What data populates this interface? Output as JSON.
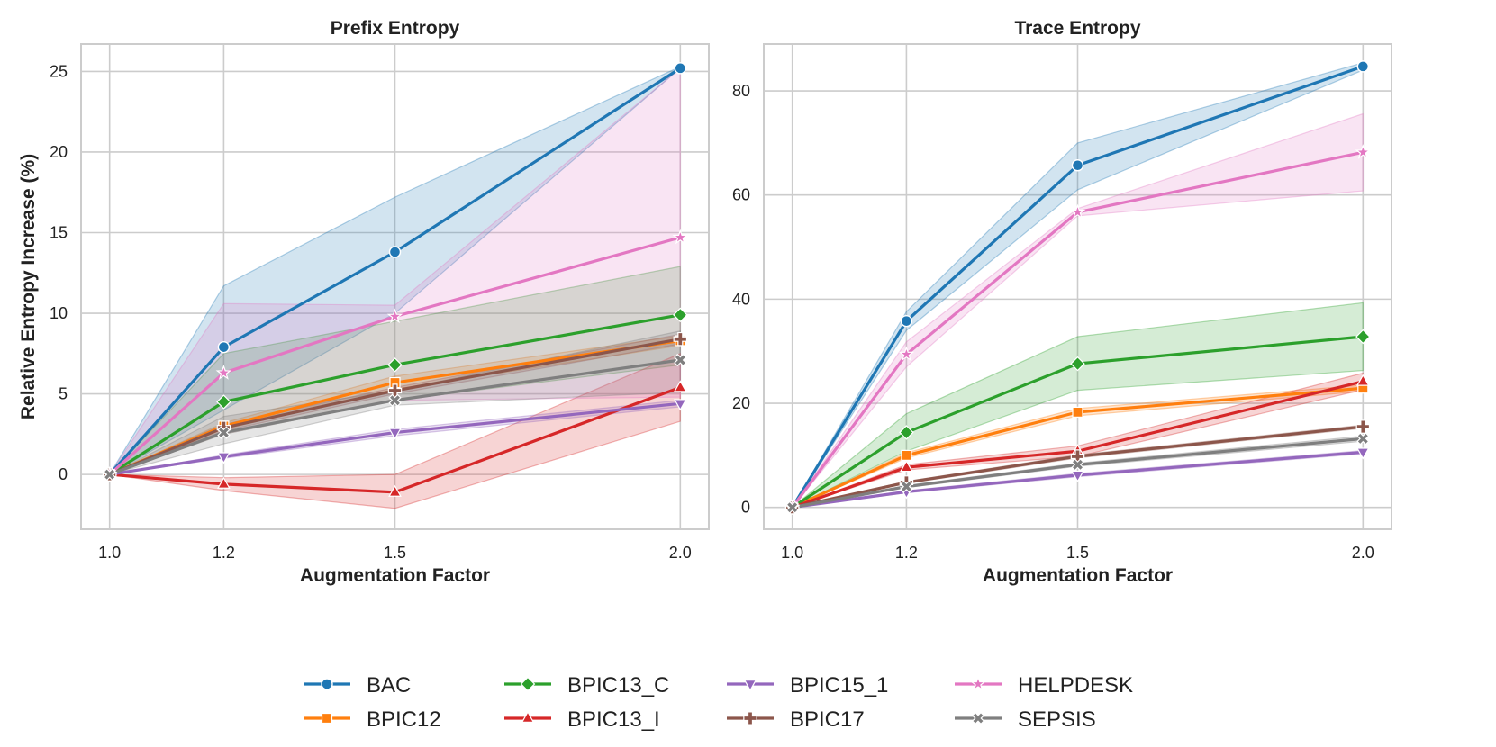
{
  "chart_data": [
    {
      "type": "line",
      "title": "Prefix Entropy",
      "xlabel": "Augmentation Factor",
      "ylabel": "Relative Entropy Increase (%)",
      "x": [
        1.0,
        1.2,
        1.5,
        2.0
      ],
      "xticks": [
        "1.0",
        "1.2",
        "1.5",
        "2.0"
      ],
      "xlim": [
        0.95,
        2.05
      ],
      "ylim": [
        -3.4,
        26.7
      ],
      "yticks": [
        0,
        5,
        10,
        15,
        20,
        25
      ],
      "grid": true,
      "series": [
        {
          "name": "BAC",
          "values": [
            0,
            7.9,
            13.8,
            25.2
          ],
          "lower": [
            0,
            4.0,
            10.0,
            25.2
          ],
          "upper": [
            0,
            11.7,
            17.2,
            25.3
          ]
        },
        {
          "name": "BPIC12",
          "values": [
            0,
            3.0,
            5.7,
            8.3
          ],
          "lower": [
            0,
            2.8,
            5.3,
            8.0
          ],
          "upper": [
            0,
            3.2,
            6.1,
            8.6
          ]
        },
        {
          "name": "BPIC13_C",
          "values": [
            0,
            4.5,
            6.8,
            9.9
          ],
          "lower": [
            0,
            2.5,
            4.6,
            6.8
          ],
          "upper": [
            0,
            7.5,
            9.5,
            12.9
          ]
        },
        {
          "name": "BPIC13_I",
          "values": [
            0,
            -0.6,
            -1.1,
            5.4
          ],
          "lower": [
            0,
            -1.0,
            -2.1,
            3.3
          ],
          "upper": [
            0,
            -0.2,
            0.0,
            7.5
          ]
        },
        {
          "name": "BPIC15_1",
          "values": [
            0,
            1.1,
            2.6,
            4.4
          ],
          "lower": [
            0,
            1.0,
            2.4,
            4.2
          ],
          "upper": [
            0,
            1.2,
            2.8,
            4.6
          ]
        },
        {
          "name": "BPIC17",
          "values": [
            0,
            2.9,
            5.2,
            8.4
          ],
          "lower": [
            0,
            2.7,
            5.0,
            8.1
          ],
          "upper": [
            0,
            3.1,
            5.4,
            8.7
          ]
        },
        {
          "name": "HELPDESK",
          "values": [
            0,
            6.3,
            9.8,
            14.7
          ],
          "lower": [
            0,
            2.5,
            4.6,
            4.8
          ],
          "upper": [
            0,
            10.6,
            10.5,
            25.2
          ]
        },
        {
          "name": "SEPSIS",
          "values": [
            0,
            2.6,
            4.6,
            7.1
          ],
          "lower": [
            0,
            1.9,
            4.3,
            5.1
          ],
          "upper": [
            0,
            3.6,
            5.2,
            8.9
          ]
        }
      ]
    },
    {
      "type": "line",
      "title": "Trace Entropy",
      "xlabel": "Augmentation Factor",
      "ylabel": "",
      "x": [
        1.0,
        1.2,
        1.5,
        2.0
      ],
      "xticks": [
        "1.0",
        "1.2",
        "1.5",
        "2.0"
      ],
      "xlim": [
        0.95,
        2.05
      ],
      "ylim": [
        -4.2,
        89.0
      ],
      "yticks": [
        0,
        20,
        40,
        60,
        80
      ],
      "grid": true,
      "series": [
        {
          "name": "BAC",
          "values": [
            0,
            35.8,
            65.7,
            84.7
          ],
          "lower": [
            0,
            34.0,
            61.0,
            84.0
          ],
          "upper": [
            0,
            37.6,
            70.0,
            85.4
          ]
        },
        {
          "name": "BPIC12",
          "values": [
            0,
            10.0,
            18.3,
            22.9
          ],
          "lower": [
            0,
            9.5,
            17.6,
            22.3
          ],
          "upper": [
            0,
            10.5,
            19.0,
            23.5
          ]
        },
        {
          "name": "BPIC13_C",
          "values": [
            0,
            14.4,
            27.6,
            32.8
          ],
          "lower": [
            0,
            10.8,
            22.5,
            26.3
          ],
          "upper": [
            0,
            18.0,
            32.8,
            39.3
          ]
        },
        {
          "name": "BPIC13_I",
          "values": [
            0,
            7.7,
            10.8,
            24.2
          ],
          "lower": [
            0,
            7.2,
            9.8,
            22.6
          ],
          "upper": [
            0,
            8.2,
            11.8,
            25.8
          ]
        },
        {
          "name": "BPIC15_1",
          "values": [
            0,
            3.0,
            6.2,
            10.6
          ],
          "lower": [
            0,
            2.8,
            5.9,
            10.3
          ],
          "upper": [
            0,
            3.2,
            6.5,
            10.9
          ]
        },
        {
          "name": "BPIC17",
          "values": [
            0,
            4.8,
            9.8,
            15.5
          ],
          "lower": [
            0,
            4.6,
            9.5,
            15.2
          ],
          "upper": [
            0,
            5.0,
            10.1,
            15.8
          ]
        },
        {
          "name": "HELPDESK",
          "values": [
            0,
            29.4,
            56.7,
            68.2
          ],
          "lower": [
            0,
            27.0,
            56.0,
            60.8
          ],
          "upper": [
            0,
            31.8,
            57.4,
            75.6
          ]
        },
        {
          "name": "SEPSIS",
          "values": [
            0,
            4.0,
            8.2,
            13.2
          ],
          "lower": [
            0,
            3.8,
            7.9,
            12.7
          ],
          "upper": [
            0,
            4.2,
            8.5,
            13.7
          ]
        }
      ]
    }
  ],
  "legend": {
    "placement": "bottom-center",
    "columns": 4,
    "entries": [
      "BAC",
      "BPIC12",
      "BPIC13_C",
      "BPIC13_I",
      "BPIC15_1",
      "BPIC17",
      "HELPDESK",
      "SEPSIS"
    ]
  },
  "colors": {
    "BAC": "#1f77b4",
    "BPIC12": "#ff7f0e",
    "BPIC13_C": "#2ca02c",
    "BPIC13_I": "#d62728",
    "BPIC15_1": "#9467bd",
    "BPIC17": "#8c564b",
    "HELPDESK": "#e377c2",
    "SEPSIS": "#7f7f7f"
  },
  "markers": {
    "BAC": "circle",
    "BPIC12": "square",
    "BPIC13_C": "diamond",
    "BPIC13_I": "triangle-up",
    "BPIC15_1": "triangle-down",
    "BPIC17": "plus",
    "HELPDESK": "star",
    "SEPSIS": "x"
  }
}
